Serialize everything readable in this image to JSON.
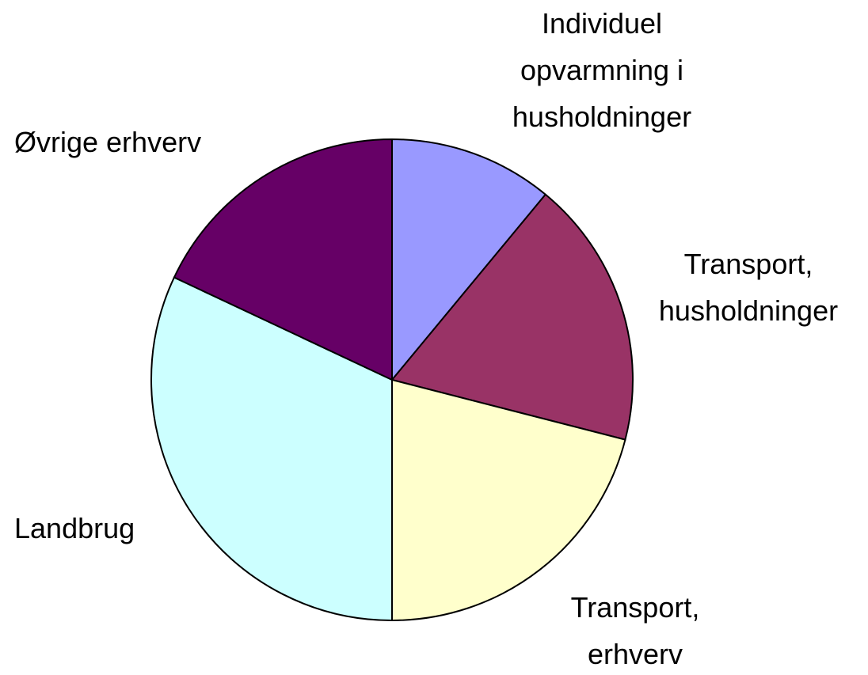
{
  "chart_data": {
    "type": "pie",
    "categories": [
      "Individuel\nopvarmning i\nhusholdninger",
      "Transport,\nhusholdninger",
      "Transport,\nerhverv",
      "Landbrug",
      "Øvrige erhverv"
    ],
    "values": [
      11,
      18,
      21,
      32,
      18
    ],
    "colors": [
      "#9999ff",
      "#993366",
      "#ffffcc",
      "#ccffff",
      "#660066"
    ]
  }
}
